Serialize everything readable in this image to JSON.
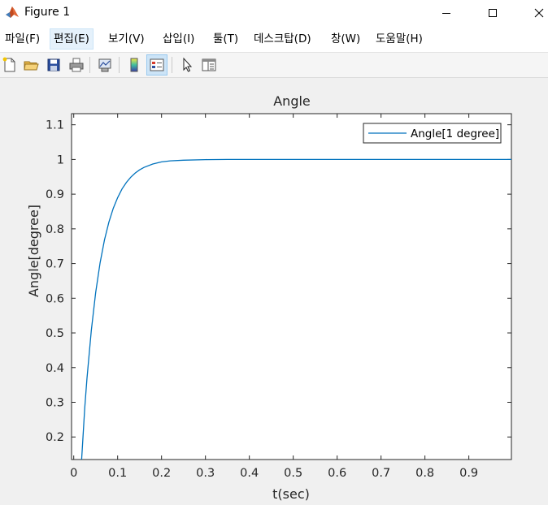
{
  "window": {
    "title": "Figure 1",
    "controls": {
      "minimize": "minimize",
      "maximize": "maximize",
      "close": "close"
    }
  },
  "menu": {
    "items": [
      {
        "label": "파일(F)"
      },
      {
        "label": "편집(E)",
        "active": true
      },
      {
        "label": "보기(V)"
      },
      {
        "label": "삽입(I)"
      },
      {
        "label": "툴(T)"
      },
      {
        "label": "데스크탑(D)"
      },
      {
        "label": "창(W)"
      },
      {
        "label": "도움말(H)"
      }
    ]
  },
  "toolbar": {
    "tools": [
      {
        "icon": "new-figure-icon"
      },
      {
        "icon": "open-file-icon"
      },
      {
        "icon": "save-icon"
      },
      {
        "icon": "print-icon"
      },
      {
        "icon": "link-plot-icon"
      },
      {
        "icon": "colorbar-icon"
      },
      {
        "icon": "legend-icon",
        "pressed": true
      },
      {
        "icon": "edit-plot-arrow-icon"
      },
      {
        "icon": "property-inspector-icon"
      }
    ]
  },
  "chart_data": {
    "type": "line",
    "title": "Angle",
    "xlabel": "t(sec)",
    "ylabel": "Angle[degree]",
    "xlim": [
      -0.005,
      0.997
    ],
    "ylim": [
      0.135,
      1.132
    ],
    "xticks": [
      0,
      0.1,
      0.2,
      0.3,
      0.4,
      0.5,
      0.6,
      0.7,
      0.8,
      0.9
    ],
    "xtick_labels": [
      "0",
      "0.1",
      "0.2",
      "0.3",
      "0.4",
      "0.5",
      "0.6",
      "0.7",
      "0.8",
      "0.9"
    ],
    "yticks": [
      0.2,
      0.3,
      0.4,
      0.5,
      0.6,
      0.7,
      0.8,
      0.9,
      1,
      1.1
    ],
    "ytick_labels": [
      "0.2",
      "0.3",
      "0.4",
      "0.5",
      "0.6",
      "0.7",
      "0.8",
      "0.9",
      "1",
      "1.1"
    ],
    "grid": false,
    "legend_position": "top-right",
    "series": [
      {
        "name": "Angle[1 degree]",
        "color": "#0072bd",
        "x": [
          0.018,
          0.025,
          0.03,
          0.04,
          0.05,
          0.06,
          0.07,
          0.08,
          0.09,
          0.1,
          0.11,
          0.12,
          0.13,
          0.14,
          0.15,
          0.16,
          0.18,
          0.2,
          0.22,
          0.25,
          0.3,
          0.35,
          0.4,
          0.5,
          0.6,
          0.7,
          0.8,
          0.9,
          0.997
        ],
        "y": [
          0.135,
          0.283,
          0.367,
          0.507,
          0.617,
          0.702,
          0.768,
          0.819,
          0.859,
          0.89,
          0.915,
          0.934,
          0.949,
          0.961,
          0.97,
          0.977,
          0.987,
          0.993,
          0.996,
          0.998,
          0.9995,
          1.0,
          1.0,
          1.0,
          1.0,
          1.0,
          1.0,
          1.0,
          1.0
        ]
      }
    ]
  }
}
